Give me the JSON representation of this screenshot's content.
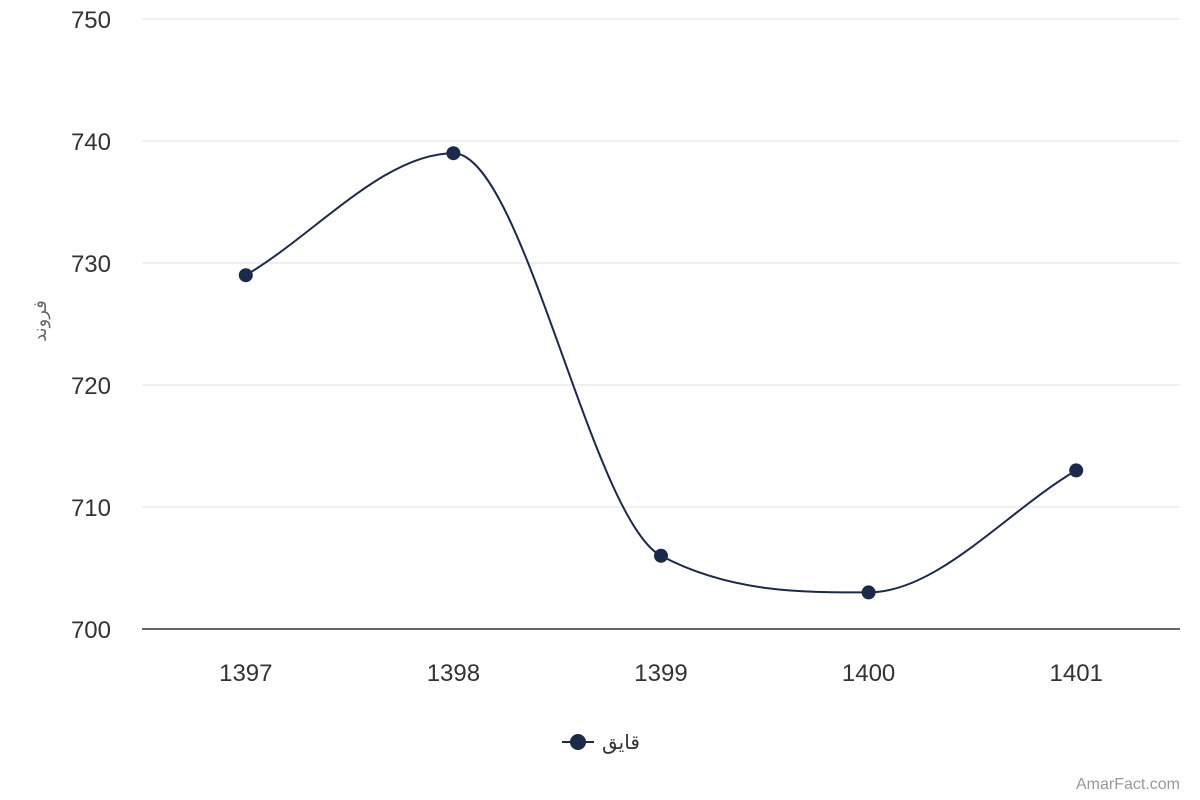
{
  "chart_data": {
    "type": "line",
    "x": [
      "1397",
      "1398",
      "1399",
      "1400",
      "1401"
    ],
    "series": [
      {
        "name": "قایق",
        "values": [
          729,
          739,
          706,
          703,
          713
        ],
        "color": "#1b2a4a"
      }
    ],
    "ylabel": "فروند",
    "xlabel": "",
    "ylim": [
      700,
      750
    ],
    "yticks": [
      "700",
      "710",
      "720",
      "730",
      "740",
      "750"
    ],
    "grid": true,
    "smooth": true,
    "legend": "bottom-center"
  },
  "credit": "AmarFact.com",
  "colors": {
    "grid": "#e0e0e0",
    "axis": "#333333",
    "series": "#1b2a4a"
  }
}
